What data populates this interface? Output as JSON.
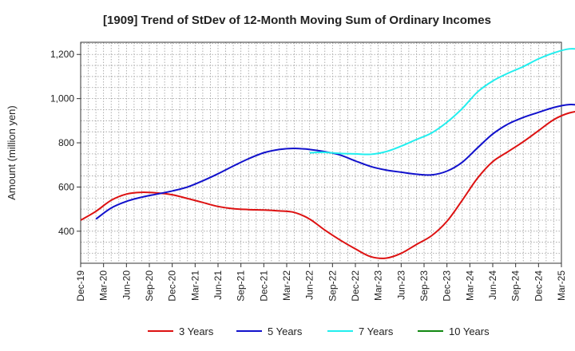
{
  "chart_data": {
    "type": "line",
    "title": "[1909]  Trend of StDev of 12-Month Moving Sum of Ordinary Incomes",
    "xlabel": "",
    "ylabel": "Amount (million yen)",
    "ylim": [
      255,
      1255
    ],
    "yticks": [
      400,
      600,
      800,
      1000,
      1200
    ],
    "ytick_labels": [
      "400",
      "600",
      "800",
      "1,000",
      "1,200"
    ],
    "xtick_labels": [
      "Dec-19",
      "Mar-20",
      "Jun-20",
      "Sep-20",
      "Dec-20",
      "Mar-21",
      "Jun-21",
      "Sep-21",
      "Dec-21",
      "Mar-22",
      "Jun-22",
      "Sep-22",
      "Dec-22",
      "Mar-23",
      "Jun-23",
      "Sep-23",
      "Dec-23",
      "Mar-24",
      "Jun-24",
      "Sep-24",
      "Dec-24",
      "Mar-25"
    ],
    "grid": true,
    "legend_position": "bottom",
    "series": [
      {
        "name": "3 Years",
        "color": "#dd1111",
        "values": [
          450,
          490,
          540,
          568,
          576,
          573,
          565,
          548,
          530,
          512,
          502,
          498,
          496,
          492,
          485,
          455,
          405,
          360,
          320,
          285,
          278,
          300,
          340,
          380,
          445,
          540,
          640,
          715,
          760,
          805,
          855,
          905,
          935,
          945,
          940,
          935
        ]
      },
      {
        "name": "5 Years",
        "color": "#1111cc",
        "values": [
          null,
          455,
          505,
          535,
          554,
          568,
          582,
          600,
          628,
          660,
          695,
          728,
          755,
          770,
          775,
          770,
          760,
          745,
          718,
          693,
          677,
          667,
          658,
          655,
          672,
          712,
          777,
          840,
          885,
          915,
          938,
          960,
          973,
          970,
          972,
          985
        ]
      },
      {
        "name": "7 Years",
        "color": "#22eeee",
        "values": [
          null,
          null,
          null,
          null,
          null,
          null,
          null,
          null,
          null,
          null,
          null,
          null,
          null,
          null,
          null,
          755,
          757,
          752,
          750,
          748,
          760,
          785,
          815,
          845,
          893,
          955,
          1030,
          1080,
          1115,
          1145,
          1180,
          1207,
          1225,
          1222,
          1220,
          1222
        ]
      },
      {
        "name": "10 Years",
        "color": "#118811",
        "values": []
      }
    ]
  }
}
